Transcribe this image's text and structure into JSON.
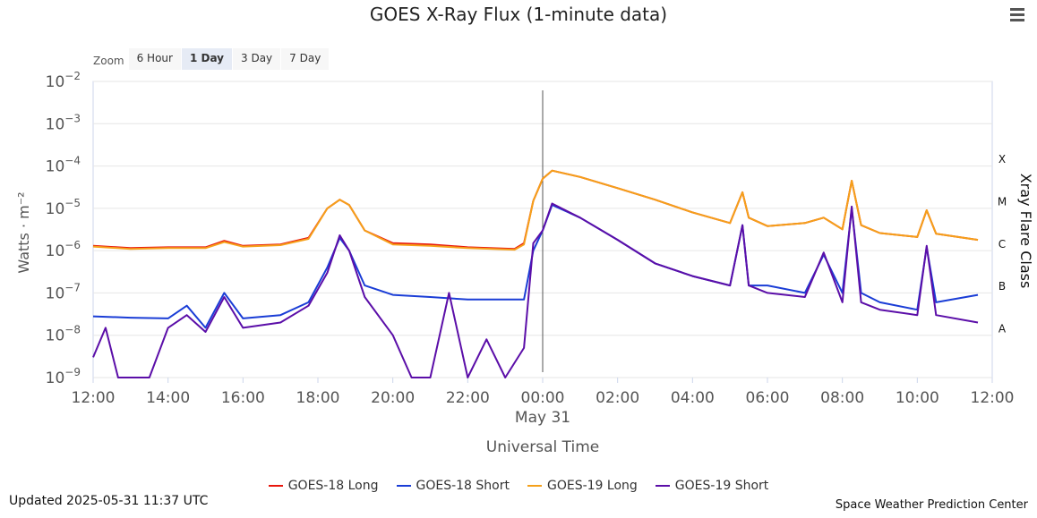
{
  "title": "GOES X-Ray Flux (1-minute data)",
  "menu_icon": "hamburger-menu-icon",
  "zoom": {
    "label": "Zoom",
    "buttons": [
      "6 Hour",
      "1 Day",
      "3 Day",
      "7 Day"
    ],
    "active": "1 Day"
  },
  "footer": {
    "updated": "Updated 2025-05-31 11:37 UTC",
    "credit": "Space Weather Prediction Center"
  },
  "chart_data": {
    "type": "line",
    "title": "GOES X-Ray Flux (1-minute data)",
    "xlabel": "Universal Time",
    "ylabel": "Watts · m⁻²",
    "y2label": "Xray Flare Class",
    "yscale": "log",
    "xlim": [
      "2025-05-30T12:00Z",
      "2025-05-31T12:00Z"
    ],
    "ylim": [
      1e-09,
      0.01
    ],
    "x_ticks": [
      "12:00",
      "14:00",
      "16:00",
      "18:00",
      "20:00",
      "22:00",
      "00:00",
      "02:00",
      "04:00",
      "06:00",
      "08:00",
      "10:00",
      "12:00"
    ],
    "date_label": "May 31",
    "y_ticks": [
      {
        "base": "10",
        "exp": "−9",
        "value": 1e-09
      },
      {
        "base": "10",
        "exp": "−8",
        "value": 1e-08
      },
      {
        "base": "10",
        "exp": "−7",
        "value": 1e-07
      },
      {
        "base": "10",
        "exp": "−6",
        "value": 1e-06
      },
      {
        "base": "10",
        "exp": "−5",
        "value": 1e-05
      },
      {
        "base": "10",
        "exp": "−4",
        "value": 0.0001
      },
      {
        "base": "10",
        "exp": "−3",
        "value": 0.001
      },
      {
        "base": "10",
        "exp": "−2",
        "value": 0.01
      }
    ],
    "flare_classes": [
      {
        "label": "A",
        "value": 1.5e-08
      },
      {
        "label": "B",
        "value": 1.5e-07
      },
      {
        "label": "C",
        "value": 1.5e-06
      },
      {
        "label": "M",
        "value": 1.5e-05
      },
      {
        "label": "X",
        "value": 0.00015
      }
    ],
    "day_marker": "2025-05-31T00:00Z",
    "legend_position": "bottom",
    "grid": true,
    "series": [
      {
        "name": "GOES-18 Long",
        "color": "#e8160c",
        "points": [
          [
            "2025-05-30T12:00Z",
            1.3e-06
          ],
          [
            "2025-05-30T13:00Z",
            1.15e-06
          ],
          [
            "2025-05-30T14:00Z",
            1.2e-06
          ],
          [
            "2025-05-30T15:00Z",
            1.2e-06
          ],
          [
            "2025-05-30T15:30Z",
            1.7e-06
          ],
          [
            "2025-05-30T16:00Z",
            1.3e-06
          ],
          [
            "2025-05-30T17:00Z",
            1.4e-06
          ],
          [
            "2025-05-30T17:45Z",
            2e-06
          ],
          [
            "2025-05-30T18:15Z",
            1e-05
          ],
          [
            "2025-05-30T18:35Z",
            1.6e-05
          ],
          [
            "2025-05-30T18:50Z",
            1.2e-05
          ],
          [
            "2025-05-30T19:15Z",
            3e-06
          ],
          [
            "2025-05-30T20:00Z",
            1.5e-06
          ],
          [
            "2025-05-30T21:00Z",
            1.4e-06
          ],
          [
            "2025-05-30T22:00Z",
            1.2e-06
          ],
          [
            "2025-05-30T23:15Z",
            1.1e-06
          ],
          [
            "2025-05-30T23:30Z",
            1.5e-06
          ],
          [
            "2025-05-30T23:45Z",
            1.5e-05
          ],
          [
            "2025-05-31T00:00Z",
            5e-05
          ],
          [
            "2025-05-31T00:15Z",
            7.8e-05
          ],
          [
            "2025-05-31T01:00Z",
            5.5e-05
          ],
          [
            "2025-05-31T02:00Z",
            3e-05
          ],
          [
            "2025-05-31T03:00Z",
            1.6e-05
          ],
          [
            "2025-05-31T04:00Z",
            8e-06
          ],
          [
            "2025-05-31T05:00Z",
            4.5e-06
          ],
          [
            "2025-05-31T05:20Z",
            2.4e-05
          ],
          [
            "2025-05-31T05:30Z",
            6e-06
          ],
          [
            "2025-05-31T06:00Z",
            3.8e-06
          ],
          [
            "2025-05-31T07:00Z",
            4.5e-06
          ],
          [
            "2025-05-31T07:30Z",
            6e-06
          ],
          [
            "2025-05-31T08:00Z",
            3.2e-06
          ],
          [
            "2025-05-31T08:15Z",
            4.5e-05
          ],
          [
            "2025-05-31T08:30Z",
            4e-06
          ],
          [
            "2025-05-31T09:00Z",
            2.6e-06
          ],
          [
            "2025-05-31T10:00Z",
            2.1e-06
          ],
          [
            "2025-05-31T10:15Z",
            9e-06
          ],
          [
            "2025-05-31T10:30Z",
            2.5e-06
          ],
          [
            "2025-05-31T11:37Z",
            1.8e-06
          ]
        ]
      },
      {
        "name": "GOES-18 Short",
        "color": "#1a3dd6",
        "points": [
          [
            "2025-05-30T12:00Z",
            2.8e-08
          ],
          [
            "2025-05-30T13:00Z",
            2.6e-08
          ],
          [
            "2025-05-30T14:00Z",
            2.5e-08
          ],
          [
            "2025-05-30T14:30Z",
            5e-08
          ],
          [
            "2025-05-30T15:00Z",
            1.5e-08
          ],
          [
            "2025-05-30T15:30Z",
            1e-07
          ],
          [
            "2025-05-30T16:00Z",
            2.5e-08
          ],
          [
            "2025-05-30T17:00Z",
            3e-08
          ],
          [
            "2025-05-30T17:45Z",
            6e-08
          ],
          [
            "2025-05-30T18:15Z",
            4e-07
          ],
          [
            "2025-05-30T18:35Z",
            2e-06
          ],
          [
            "2025-05-30T18:50Z",
            1e-06
          ],
          [
            "2025-05-30T19:15Z",
            1.5e-07
          ],
          [
            "2025-05-30T20:00Z",
            9e-08
          ],
          [
            "2025-05-30T21:00Z",
            8e-08
          ],
          [
            "2025-05-30T22:00Z",
            7e-08
          ],
          [
            "2025-05-30T23:00Z",
            7e-08
          ],
          [
            "2025-05-30T23:30Z",
            7e-08
          ],
          [
            "2025-05-30T23:45Z",
            1e-06
          ],
          [
            "2025-05-31T00:00Z",
            3e-06
          ],
          [
            "2025-05-31T00:15Z",
            1.2e-05
          ],
          [
            "2025-05-31T01:00Z",
            6e-06
          ],
          [
            "2025-05-31T02:00Z",
            1.8e-06
          ],
          [
            "2025-05-31T03:00Z",
            5e-07
          ],
          [
            "2025-05-31T04:00Z",
            2.5e-07
          ],
          [
            "2025-05-31T05:00Z",
            1.5e-07
          ],
          [
            "2025-05-31T05:20Z",
            4e-06
          ],
          [
            "2025-05-31T05:30Z",
            1.5e-07
          ],
          [
            "2025-05-31T06:00Z",
            1.5e-07
          ],
          [
            "2025-05-31T07:00Z",
            1e-07
          ],
          [
            "2025-05-31T07:30Z",
            8e-07
          ],
          [
            "2025-05-31T08:00Z",
            1e-07
          ],
          [
            "2025-05-31T08:15Z",
            1e-05
          ],
          [
            "2025-05-31T08:30Z",
            1e-07
          ],
          [
            "2025-05-31T09:00Z",
            6e-08
          ],
          [
            "2025-05-31T10:00Z",
            4e-08
          ],
          [
            "2025-05-31T10:15Z",
            1.2e-06
          ],
          [
            "2025-05-31T10:30Z",
            6e-08
          ],
          [
            "2025-05-31T11:37Z",
            9e-08
          ]
        ]
      },
      {
        "name": "GOES-19 Long",
        "color": "#f5a01a",
        "points": [
          [
            "2025-05-30T12:00Z",
            1.25e-06
          ],
          [
            "2025-05-30T13:00Z",
            1.1e-06
          ],
          [
            "2025-05-30T14:00Z",
            1.15e-06
          ],
          [
            "2025-05-30T15:00Z",
            1.15e-06
          ],
          [
            "2025-05-30T15:30Z",
            1.6e-06
          ],
          [
            "2025-05-30T16:00Z",
            1.25e-06
          ],
          [
            "2025-05-30T17:00Z",
            1.35e-06
          ],
          [
            "2025-05-30T17:45Z",
            1.9e-06
          ],
          [
            "2025-05-30T18:15Z",
            1e-05
          ],
          [
            "2025-05-30T18:35Z",
            1.6e-05
          ],
          [
            "2025-05-30T18:50Z",
            1.2e-05
          ],
          [
            "2025-05-30T19:15Z",
            3e-06
          ],
          [
            "2025-05-30T20:00Z",
            1.4e-06
          ],
          [
            "2025-05-30T21:00Z",
            1.3e-06
          ],
          [
            "2025-05-30T22:00Z",
            1.15e-06
          ],
          [
            "2025-05-30T23:15Z",
            1.05e-06
          ],
          [
            "2025-05-30T23:30Z",
            1.4e-06
          ],
          [
            "2025-05-30T23:45Z",
            1.5e-05
          ],
          [
            "2025-05-31T00:00Z",
            5e-05
          ],
          [
            "2025-05-31T00:15Z",
            7.8e-05
          ],
          [
            "2025-05-31T01:00Z",
            5.5e-05
          ],
          [
            "2025-05-31T02:00Z",
            3e-05
          ],
          [
            "2025-05-31T03:00Z",
            1.6e-05
          ],
          [
            "2025-05-31T04:00Z",
            8e-06
          ],
          [
            "2025-05-31T05:00Z",
            4.5e-06
          ],
          [
            "2025-05-31T05:20Z",
            2.4e-05
          ],
          [
            "2025-05-31T05:30Z",
            6e-06
          ],
          [
            "2025-05-31T06:00Z",
            3.8e-06
          ],
          [
            "2025-05-31T07:00Z",
            4.5e-06
          ],
          [
            "2025-05-31T07:30Z",
            6e-06
          ],
          [
            "2025-05-31T08:00Z",
            3.2e-06
          ],
          [
            "2025-05-31T08:15Z",
            4.5e-05
          ],
          [
            "2025-05-31T08:30Z",
            4e-06
          ],
          [
            "2025-05-31T09:00Z",
            2.6e-06
          ],
          [
            "2025-05-31T10:00Z",
            2.1e-06
          ],
          [
            "2025-05-31T10:15Z",
            9e-06
          ],
          [
            "2025-05-31T10:30Z",
            2.5e-06
          ],
          [
            "2025-05-31T11:37Z",
            1.8e-06
          ]
        ]
      },
      {
        "name": "GOES-19 Short",
        "color": "#5b0ea8",
        "points": [
          [
            "2025-05-30T12:00Z",
            3e-09
          ],
          [
            "2025-05-30T12:20Z",
            1.5e-08
          ],
          [
            "2025-05-30T12:40Z",
            1e-09
          ],
          [
            "2025-05-30T13:30Z",
            1e-09
          ],
          [
            "2025-05-30T14:00Z",
            1.5e-08
          ],
          [
            "2025-05-30T14:30Z",
            3e-08
          ],
          [
            "2025-05-30T15:00Z",
            1.2e-08
          ],
          [
            "2025-05-30T15:30Z",
            8e-08
          ],
          [
            "2025-05-30T16:00Z",
            1.5e-08
          ],
          [
            "2025-05-30T17:00Z",
            2e-08
          ],
          [
            "2025-05-30T17:45Z",
            5e-08
          ],
          [
            "2025-05-30T18:15Z",
            3e-07
          ],
          [
            "2025-05-30T18:35Z",
            2.3e-06
          ],
          [
            "2025-05-30T18:50Z",
            1e-06
          ],
          [
            "2025-05-30T19:15Z",
            8e-08
          ],
          [
            "2025-05-30T20:00Z",
            1e-08
          ],
          [
            "2025-05-30T20:30Z",
            1e-09
          ],
          [
            "2025-05-30T21:00Z",
            1e-09
          ],
          [
            "2025-05-30T21:30Z",
            1e-07
          ],
          [
            "2025-05-30T22:00Z",
            1e-09
          ],
          [
            "2025-05-30T22:30Z",
            8e-09
          ],
          [
            "2025-05-30T23:00Z",
            1e-09
          ],
          [
            "2025-05-30T23:30Z",
            5e-09
          ],
          [
            "2025-05-30T23:45Z",
            1.5e-06
          ],
          [
            "2025-05-31T00:00Z",
            3e-06
          ],
          [
            "2025-05-31T00:15Z",
            1.3e-05
          ],
          [
            "2025-05-31T01:00Z",
            6e-06
          ],
          [
            "2025-05-31T02:00Z",
            1.8e-06
          ],
          [
            "2025-05-31T03:00Z",
            5e-07
          ],
          [
            "2025-05-31T04:00Z",
            2.5e-07
          ],
          [
            "2025-05-31T05:00Z",
            1.5e-07
          ],
          [
            "2025-05-31T05:20Z",
            4e-06
          ],
          [
            "2025-05-31T05:30Z",
            1.5e-07
          ],
          [
            "2025-05-31T06:00Z",
            1e-07
          ],
          [
            "2025-05-31T07:00Z",
            8e-08
          ],
          [
            "2025-05-31T07:30Z",
            9e-07
          ],
          [
            "2025-05-31T08:00Z",
            6e-08
          ],
          [
            "2025-05-31T08:15Z",
            1.1e-05
          ],
          [
            "2025-05-31T08:30Z",
            6e-08
          ],
          [
            "2025-05-31T09:00Z",
            4e-08
          ],
          [
            "2025-05-31T10:00Z",
            3e-08
          ],
          [
            "2025-05-31T10:15Z",
            1.3e-06
          ],
          [
            "2025-05-31T10:30Z",
            3e-08
          ],
          [
            "2025-05-31T11:37Z",
            2e-08
          ]
        ]
      }
    ]
  }
}
